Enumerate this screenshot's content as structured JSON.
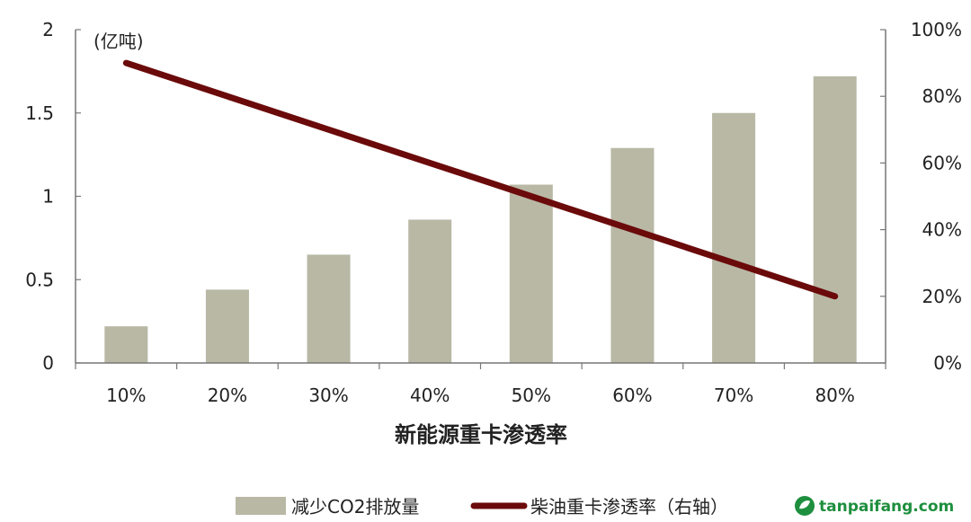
{
  "chart_data": {
    "type": "bar",
    "categories": [
      "10%",
      "20%",
      "30%",
      "40%",
      "50%",
      "60%",
      "70%",
      "80%"
    ],
    "series": [
      {
        "name": "减少CO2排放量",
        "type": "bar",
        "axis": "left",
        "color": "#b8b8a5",
        "values": [
          0.22,
          0.44,
          0.65,
          0.86,
          1.07,
          1.29,
          1.5,
          1.72
        ]
      },
      {
        "name": "柴油重卡渗透率（右轴）",
        "type": "line",
        "axis": "right",
        "color": "#6b0a0a",
        "values": [
          90,
          80,
          70,
          60,
          50,
          40,
          30,
          20
        ]
      }
    ],
    "xlabel": "新能源重卡渗透率",
    "ylabel_unit": "(亿吨)",
    "y_left": {
      "ylim": [
        0,
        2
      ],
      "ticks": [
        "0",
        "0.5",
        "1",
        "1.5",
        "2"
      ],
      "tick_values": [
        0,
        0.5,
        1,
        1.5,
        2
      ]
    },
    "y_right": {
      "ylim": [
        0,
        100
      ],
      "ticks": [
        "0%",
        "20%",
        "40%",
        "60%",
        "80%",
        "100%"
      ],
      "tick_values": [
        0,
        20,
        40,
        60,
        80,
        100
      ]
    },
    "grid": false,
    "legend": "bottom"
  },
  "watermark": {
    "text": "tanpaifang.com",
    "icon": "leaf-logo-icon",
    "color": "#1e8f3e"
  }
}
